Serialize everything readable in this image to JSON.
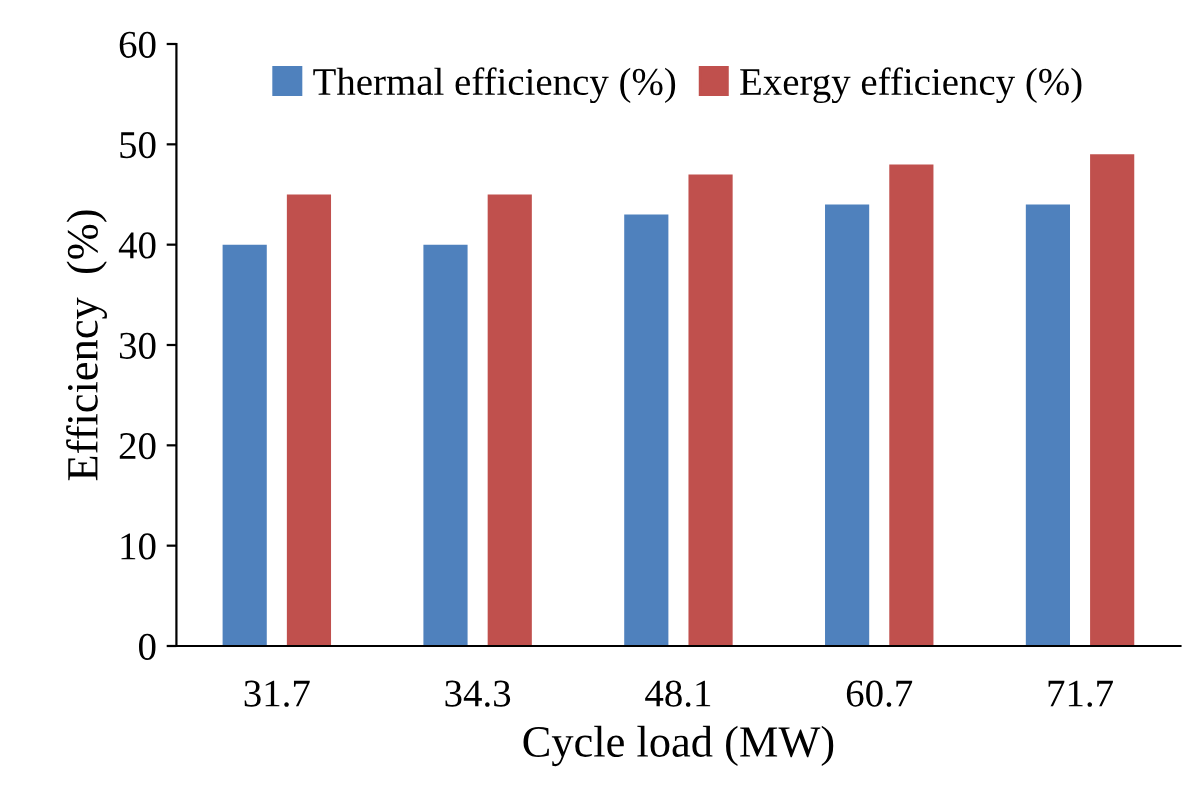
{
  "chart_data": {
    "type": "bar",
    "xlabel": "Cycle load (MW)",
    "ylabel": "Efficiency  (%)",
    "categories": [
      "31.7",
      "34.3",
      "48.1",
      "60.7",
      "71.7"
    ],
    "series": [
      {
        "name": "Thermal efficiency (%)",
        "color": "#4f81bd",
        "values": [
          40,
          40,
          43,
          44,
          44
        ]
      },
      {
        "name": "Exergy efficiency (%)",
        "color": "#c0504d",
        "values": [
          45,
          45,
          47,
          48,
          49
        ]
      }
    ],
    "ylim": [
      0,
      60
    ],
    "yticks": [
      0,
      10,
      20,
      30,
      40,
      50,
      60
    ],
    "grid": false,
    "legend": "top"
  }
}
